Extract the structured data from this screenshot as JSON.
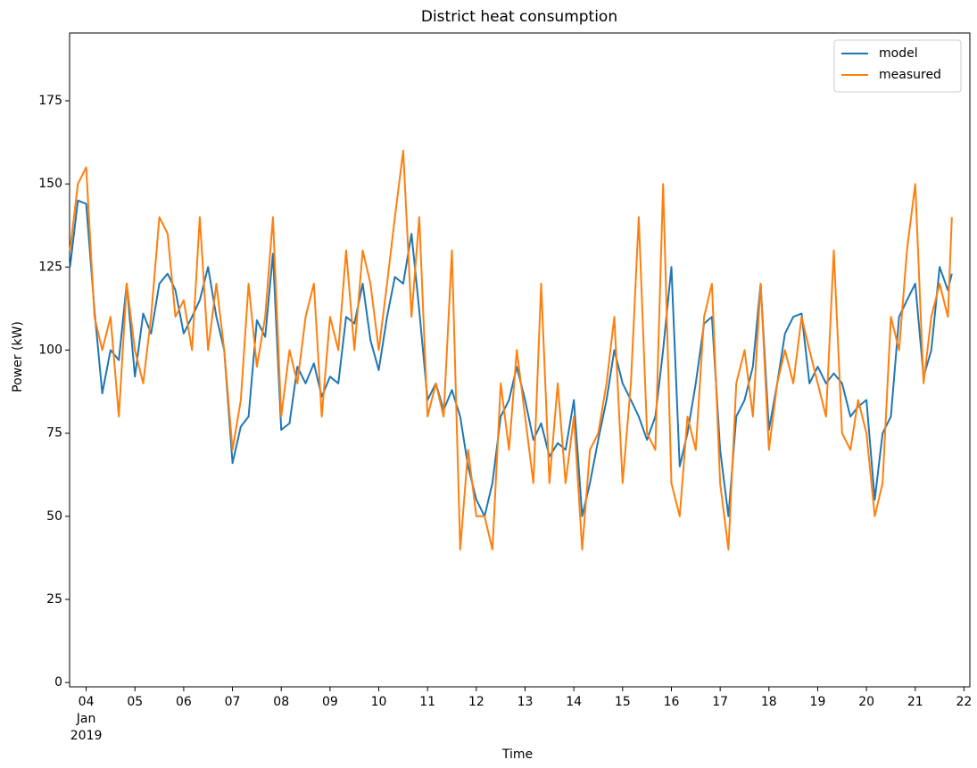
{
  "chart_data": {
    "type": "line",
    "title": "District heat consumption",
    "x_label": "Time",
    "y_label": "Power (kW)",
    "x": [
      3.67,
      3.83,
      4,
      4.17,
      4.33,
      4.5,
      4.67,
      4.83,
      5,
      5.17,
      5.33,
      5.5,
      5.67,
      5.83,
      6,
      6.17,
      6.33,
      6.5,
      6.67,
      6.83,
      7,
      7.17,
      7.33,
      7.5,
      7.67,
      7.83,
      8,
      8.17,
      8.33,
      8.5,
      8.67,
      8.83,
      9,
      9.17,
      9.33,
      9.5,
      9.67,
      9.83,
      10,
      10.17,
      10.33,
      10.5,
      10.67,
      10.83,
      11,
      11.17,
      11.33,
      11.5,
      11.67,
      11.83,
      12,
      12.17,
      12.33,
      12.5,
      12.67,
      12.83,
      13,
      13.17,
      13.33,
      13.5,
      13.67,
      13.83,
      14,
      14.17,
      14.33,
      14.5,
      14.67,
      14.83,
      15,
      15.17,
      15.33,
      15.5,
      15.67,
      15.83,
      16,
      16.17,
      16.33,
      16.5,
      16.67,
      16.83,
      17,
      17.17,
      17.33,
      17.5,
      17.67,
      17.83,
      18,
      18.17,
      18.33,
      18.5,
      18.67,
      18.83,
      19,
      19.17,
      19.33,
      19.5,
      19.67,
      19.83,
      20,
      20.17,
      20.33,
      20.5,
      20.67,
      20.83,
      21,
      21.17,
      21.33,
      21.5,
      21.67,
      21.75
    ],
    "series": [
      {
        "name": "model",
        "color": "#1f77b4",
        "values": [
          125,
          145,
          144,
          112,
          87,
          100,
          97,
          120,
          92,
          111,
          105,
          120,
          123,
          118,
          105,
          110,
          115,
          125,
          110,
          100,
          66,
          77,
          80,
          109,
          104,
          129,
          76,
          78,
          95,
          90,
          96,
          86,
          92,
          90,
          110,
          108,
          120,
          103,
          94,
          110,
          122,
          120,
          135,
          112,
          85,
          90,
          82,
          88,
          80,
          65,
          55,
          50,
          60,
          80,
          85,
          95,
          85,
          73,
          78,
          68,
          72,
          70,
          85,
          50,
          60,
          73,
          85,
          100,
          90,
          85,
          80,
          73,
          80,
          100,
          125,
          65,
          75,
          90,
          108,
          110,
          70,
          50,
          80,
          85,
          95,
          120,
          76,
          90,
          105,
          110,
          111,
          90,
          95,
          90,
          93,
          90,
          80,
          83,
          85,
          55,
          75,
          80,
          110,
          115,
          120,
          92,
          100,
          125,
          118,
          123
        ]
      },
      {
        "name": "measured",
        "color": "#ff7f0e",
        "values": [
          130,
          150,
          155,
          110,
          100,
          110,
          80,
          120,
          100,
          90,
          110,
          140,
          135,
          110,
          115,
          100,
          140,
          100,
          120,
          100,
          70,
          85,
          120,
          95,
          110,
          140,
          80,
          100,
          90,
          110,
          120,
          80,
          110,
          100,
          130,
          100,
          130,
          120,
          100,
          120,
          140,
          160,
          110,
          140,
          80,
          90,
          80,
          130,
          40,
          70,
          50,
          50,
          40,
          90,
          70,
          100,
          80,
          60,
          120,
          60,
          90,
          60,
          80,
          40,
          70,
          75,
          90,
          110,
          60,
          90,
          140,
          75,
          70,
          150,
          60,
          50,
          80,
          70,
          110,
          120,
          60,
          40,
          90,
          100,
          80,
          120,
          70,
          90,
          100,
          90,
          110,
          100,
          90,
          80,
          130,
          75,
          70,
          85,
          75,
          50,
          60,
          110,
          100,
          130,
          150,
          90,
          110,
          120,
          110,
          140
        ]
      }
    ],
    "xlim": [
      3.66,
      22.12
    ],
    "xticks": [
      {
        "value": 4,
        "label": "04"
      },
      {
        "value": 5,
        "label": "05"
      },
      {
        "value": 6,
        "label": "06"
      },
      {
        "value": 7,
        "label": "07"
      },
      {
        "value": 8,
        "label": "08"
      },
      {
        "value": 9,
        "label": "09"
      },
      10,
      11,
      12,
      13,
      14,
      15,
      16,
      17,
      18,
      19,
      20,
      21,
      22
    ],
    "x_tick_sublabels": [
      "Jan",
      "2019"
    ],
    "ylim": [
      -1.3,
      195.4
    ],
    "yticks": [
      0,
      25,
      50,
      75,
      100,
      125,
      150,
      175
    ],
    "legend": "upper right"
  }
}
